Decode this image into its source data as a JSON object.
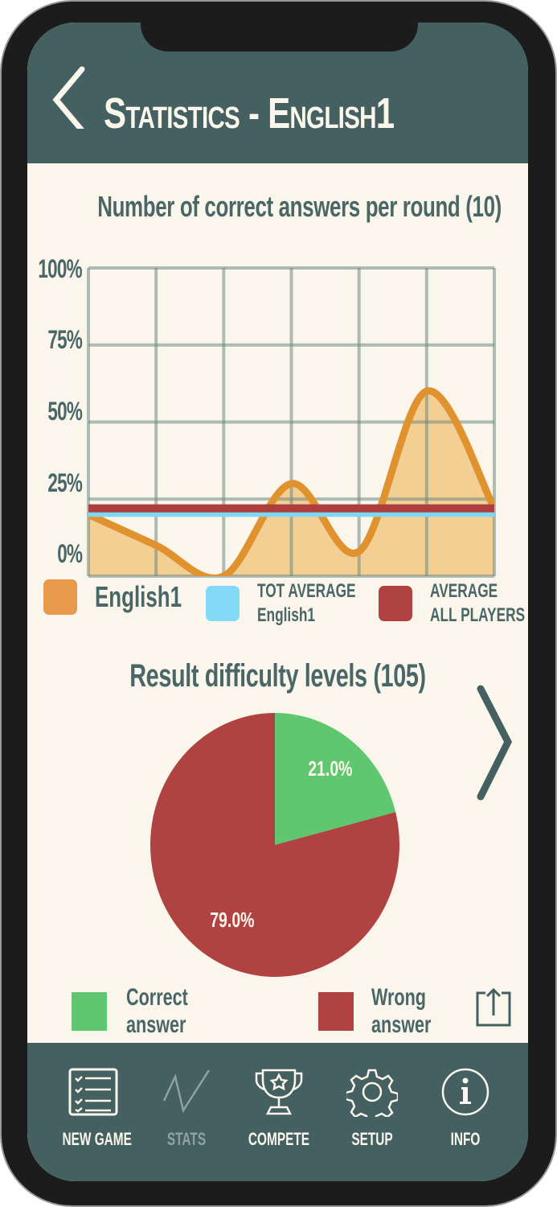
{
  "header": {
    "title": "Statistics - English1",
    "back_icon": "chevron-left-icon"
  },
  "line_section": {
    "title": "Number of correct answers per round (10)"
  },
  "pie_section": {
    "title": "Result difficulty levels (105)"
  },
  "chart_data": [
    {
      "type": "line",
      "title": "Number of correct answers per round (10)",
      "ylim": [
        0,
        100
      ],
      "yticks": [
        "100%",
        "75%",
        "50%",
        "25%",
        "0%"
      ],
      "x": [
        1,
        2,
        3,
        4,
        5,
        6,
        7
      ],
      "series": [
        {
          "name": "English1",
          "values": [
            20,
            10,
            0,
            30,
            8,
            60,
            22
          ],
          "color": "#e0922e",
          "fill": "#f4cf94"
        },
        {
          "name": "TOT AVERAGE English1",
          "values": [
            20,
            20,
            20,
            20,
            20,
            20,
            20
          ],
          "color": "#7fd8f2"
        },
        {
          "name": "AVERAGE ALL PLAYERS",
          "values": [
            22,
            22,
            22,
            22,
            22,
            22,
            22
          ],
          "color": "#ad3f3e"
        }
      ],
      "legend": [
        {
          "label": "English1",
          "color": "#e69a4a"
        },
        {
          "label1": "TOT AVERAGE",
          "label2": "English1",
          "color": "#82daf6"
        },
        {
          "label1": "AVERAGE",
          "label2": "ALL PLAYERS",
          "color": "#b04341"
        }
      ],
      "grid": true
    },
    {
      "type": "pie",
      "title": "Result difficulty levels (105)",
      "slices": [
        {
          "label": "Correct answer",
          "value": 21.0,
          "text": "21.0%",
          "color": "#5ec76f"
        },
        {
          "label": "Wrong answer",
          "value": 79.0,
          "text": "79.0%",
          "color": "#b04341"
        }
      ],
      "legend": [
        {
          "label1": "Correct",
          "label2": "answer"
        },
        {
          "label1": "Wrong",
          "label2": "answer"
        }
      ]
    }
  ],
  "nav": [
    {
      "label": "NEW GAME",
      "icon": "checklist-icon"
    },
    {
      "label": "STATS",
      "icon": "chart-line-icon",
      "active": true
    },
    {
      "label": "COMPETE",
      "icon": "trophy-icon"
    },
    {
      "label": "SETUP",
      "icon": "gear-icon"
    },
    {
      "label": "INFO",
      "icon": "info-icon"
    }
  ]
}
